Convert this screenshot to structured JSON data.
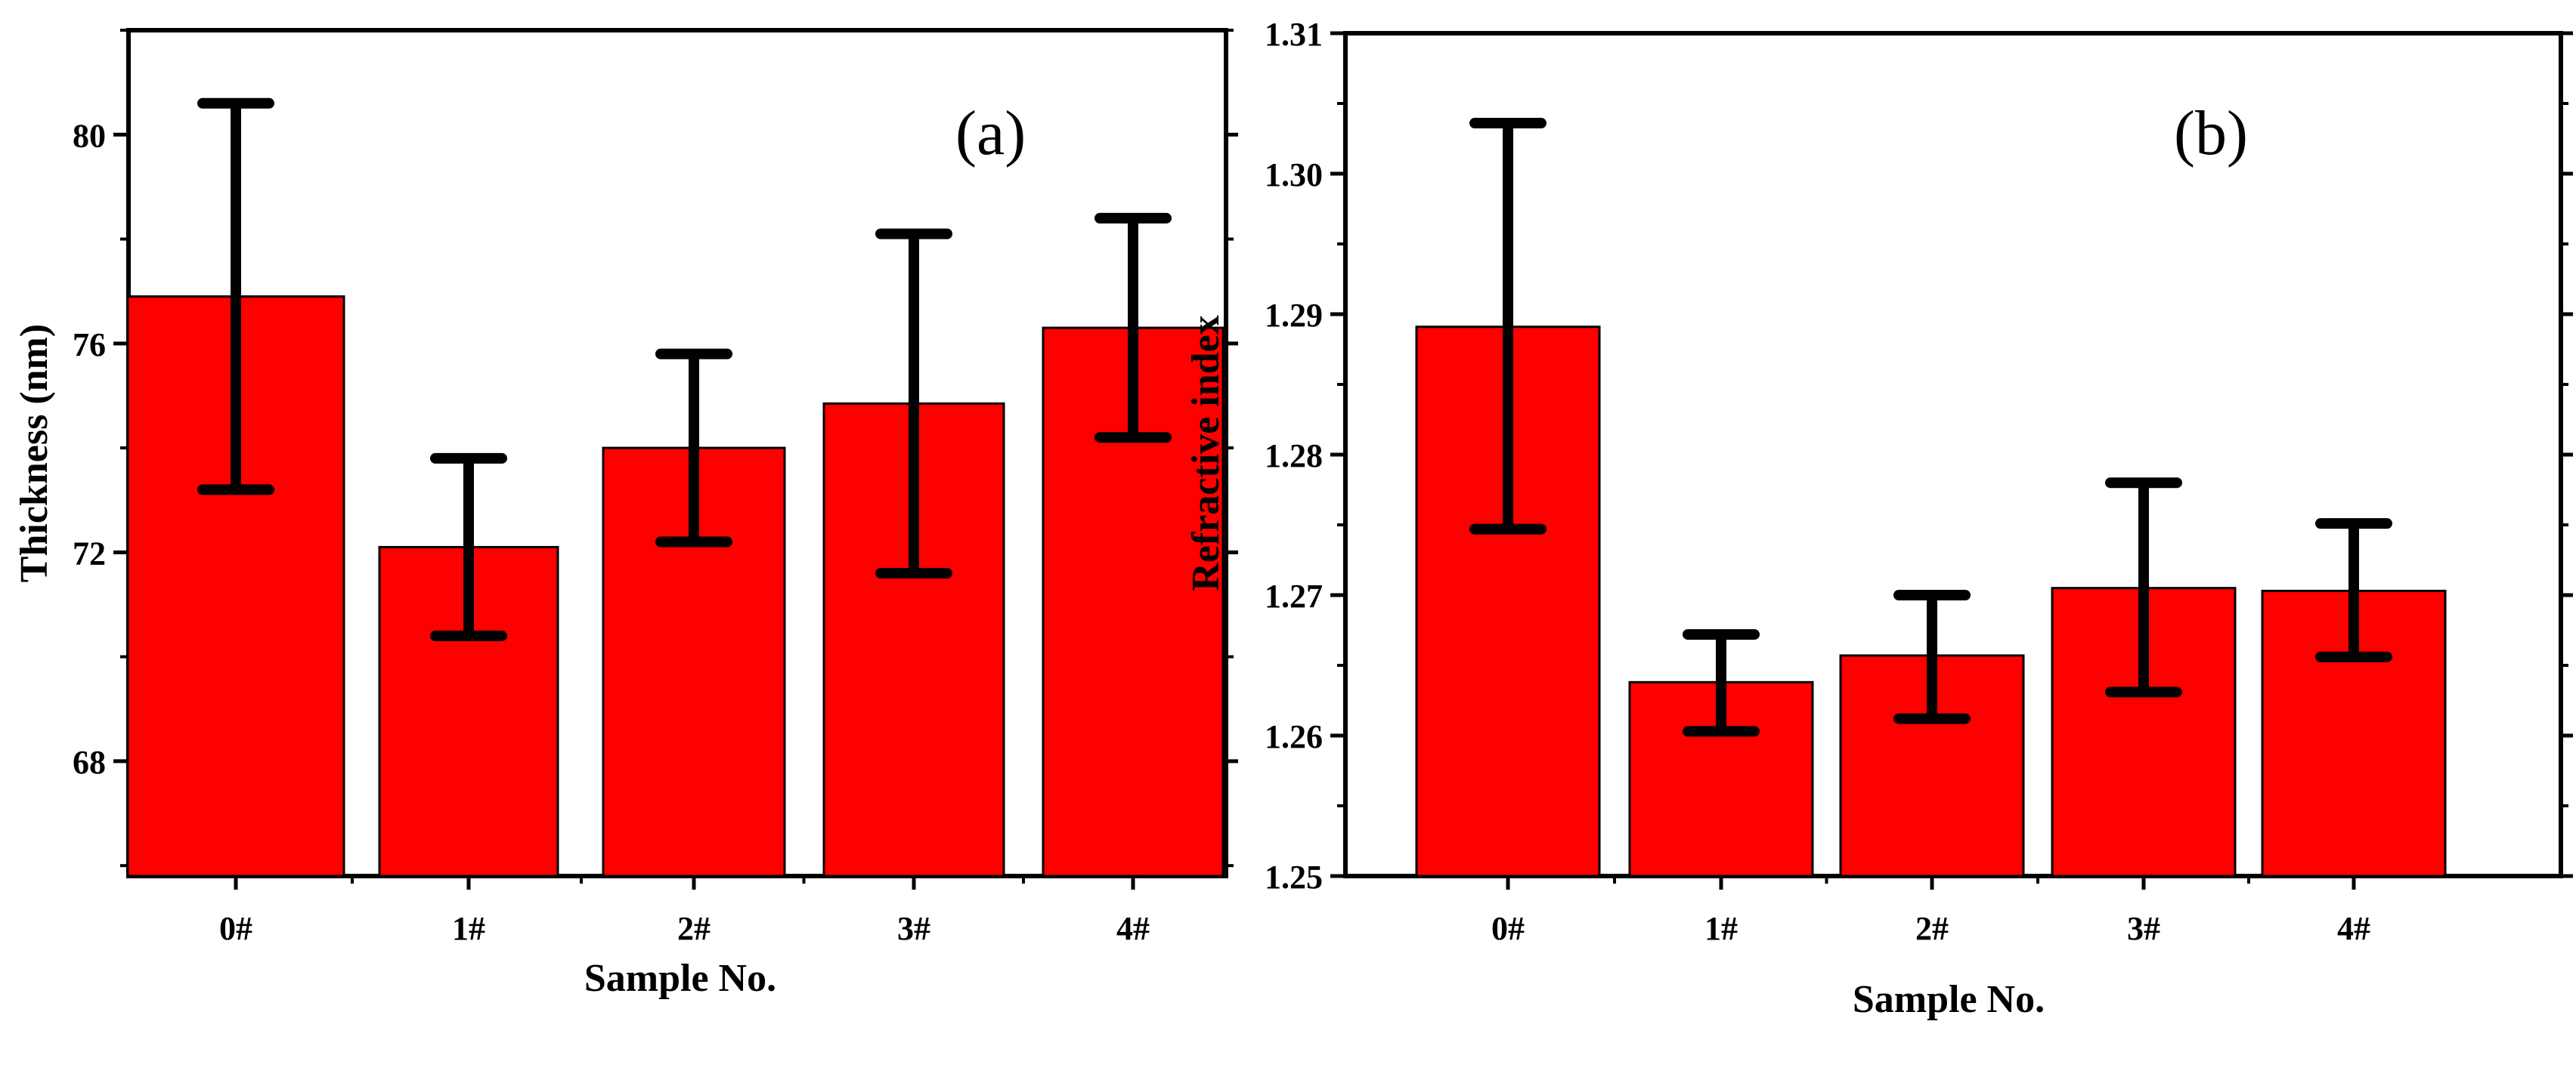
{
  "chart_data": [
    {
      "panel_label": "(a)",
      "type": "bar",
      "categories": [
        "0#",
        "1#",
        "2#",
        "3#",
        "4#"
      ],
      "values": [
        76.9,
        72.1,
        74.0,
        74.85,
        76.3
      ],
      "error_low": [
        73.2,
        70.4,
        72.2,
        71.6,
        74.2
      ],
      "error_high": [
        80.6,
        73.8,
        75.8,
        78.1,
        78.4
      ],
      "xlabel": "Sample No.",
      "ylabel": "Thickness (nm)",
      "ylim": [
        65.8,
        82.0
      ],
      "yticks": [
        68,
        72,
        76,
        80
      ],
      "ytick_labels": [
        "68",
        "72",
        "76",
        "80"
      ],
      "bar_color": "#ff0000"
    },
    {
      "panel_label": "(b)",
      "type": "bar",
      "categories": [
        "0#",
        "1#",
        "2#",
        "3#",
        "4#"
      ],
      "values": [
        1.2891,
        1.2638,
        1.2657,
        1.2705,
        1.2703
      ],
      "error_low": [
        1.2747,
        1.2603,
        1.2612,
        1.2631,
        1.2656
      ],
      "error_high": [
        1.3036,
        1.2672,
        1.27,
        1.278,
        1.2751
      ],
      "xlabel": "Sample No.",
      "ylabel": "Refractive index",
      "ylim": [
        1.25,
        1.31
      ],
      "yticks": [
        1.25,
        1.26,
        1.27,
        1.28,
        1.29,
        1.3,
        1.31
      ],
      "ytick_labels": [
        "1.25",
        "1.26",
        "1.27",
        "1.28",
        "1.29",
        "1.30",
        "1.31"
      ],
      "bar_color": "#ff0000"
    }
  ]
}
